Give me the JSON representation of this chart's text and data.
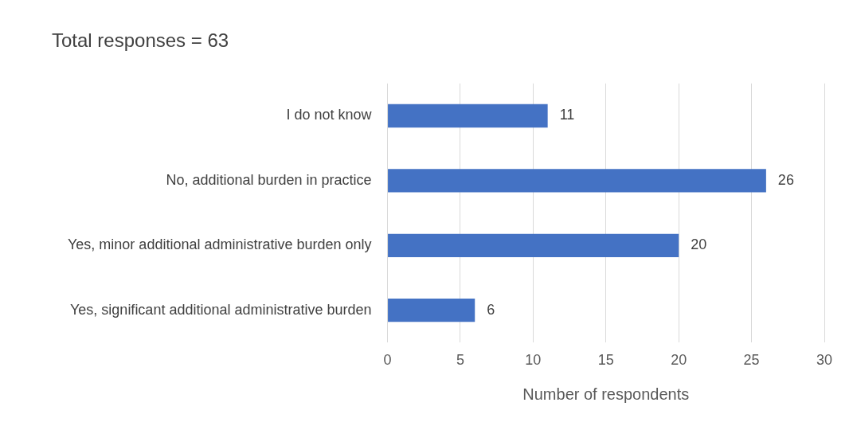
{
  "chart_data": {
    "type": "bar",
    "orientation": "horizontal",
    "title": "Total responses = 63",
    "xlabel": "Number of respondents",
    "categories": [
      "I do not know",
      "No, additional burden in practice",
      "Yes, minor additional administrative burden only",
      "Yes, significant additional administrative burden"
    ],
    "values": [
      11,
      26,
      20,
      6
    ],
    "color": "#4472c4",
    "xlim": [
      0,
      30
    ],
    "xticks": [
      0,
      5,
      10,
      15,
      20,
      25,
      30
    ],
    "grid": "x",
    "data_labels": true,
    "legend": false
  }
}
